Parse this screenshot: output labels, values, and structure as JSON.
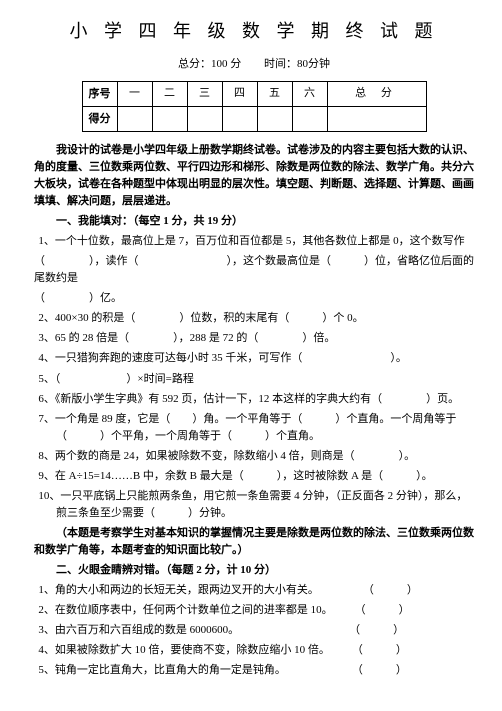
{
  "title": "小 学 四 年 级 数 学 期 终 试 题",
  "sub": {
    "score": "总分：100 分",
    "time": "时间：80分钟"
  },
  "table": {
    "row1": {
      "h": "序号",
      "c1": "一",
      "c2": "二",
      "c3": "三",
      "c4": "四",
      "c5": "五",
      "c6": "六",
      "total": "总  分"
    },
    "row2": {
      "h": "得分",
      "c1": "",
      "c2": "",
      "c3": "",
      "c4": "",
      "c5": "",
      "c6": "",
      "total": ""
    }
  },
  "intro1": "我设计的试卷是小学四年级上册数学期终试卷。试卷涉及的内容主要包括大数的认识、角的度量、三位数乘两位数、平行四边形和梯形、除数是两位数的除法、数学广角。共分六大板块，试卷在各种题型中体现出明显的层次性。填空题、判断题、选择题、计算题、画画填填、解决问题，层层递进。",
  "sec1": "一、我能填对：（每空 1 分，共 19 分）",
  "q1a": "1、一个十位数，最高位上是 7，百万位和百位都是 5，其他各数位上都是 0，这个数写作",
  "q1b": "（　　　　），读作（　　　　　　　　），这个数最高位是（　　　）位，省略亿位后面的尾数约是",
  "q1c": "（　　　　）亿。",
  "q2": "2、400×30 的积是（　　　　）位数，积的末尾有（　　　）个 0。",
  "q3": "3、65 的 28 倍是（　　　　），288 是 72 的（　　　　）倍。",
  "q4a": "4、一只猎狗奔跑的速度可达每小时 35 千米，可写作（　　　　　　　　）。",
  "q4b": "5、（　　　　　　）×时间=路程",
  "q6": "6、《新版小学生字典》有 592 页，估计一下，12 本这样的字典大约有（　　　　）页。",
  "q7": "7、一个角是 89 度，它是（　　）角。一个平角等于（　　　）个直角。一个周角等于（　　　）个平角，一个周角等于（　　　）个直角。",
  "q8": "8、两个数的商是 24，如果被除数不变，除数缩小 4 倍，则商是（　　　　）。",
  "q9": "9、在 A÷15=14……B 中，余数 B 最大是（　　　），这时被除数 A 是（　　　）。",
  "q10": "10、一只平底锅上只能煎两条鱼，用它煎一条鱼需要 4 分钟，（正反面各 2 分钟），那么，煎三条鱼至少需要（　　　）分钟。",
  "note1": "（本题是考察学生对基本知识的掌握情况主要是除数是两位数的除法、三位数乘两位数和数学广角等，本题考查的知识面比较广。）",
  "sec2": "二、火眼金睛辨对错。（每题 2 分，计 10 分）",
  "j1": "1、角的大小和两边的长短无关，跟两边叉开的大小有关。　　　　　（　　　）",
  "j2": "2、在数位顺序表中，任何两个计数单位之间的进率都是 10。　　　（　　　）",
  "j3": "3、由六百万和六百组成的数是 6000600。　　　　　　　　　　　（　　　）",
  "j4": "4、如果被除数扩大 10 倍，要使商不变，除数应缩小 10 倍。　　　（　　　）",
  "j5": "5、钝角一定比直角大，比直角大的角一定是钝角。　　　　　　　（　　　）"
}
